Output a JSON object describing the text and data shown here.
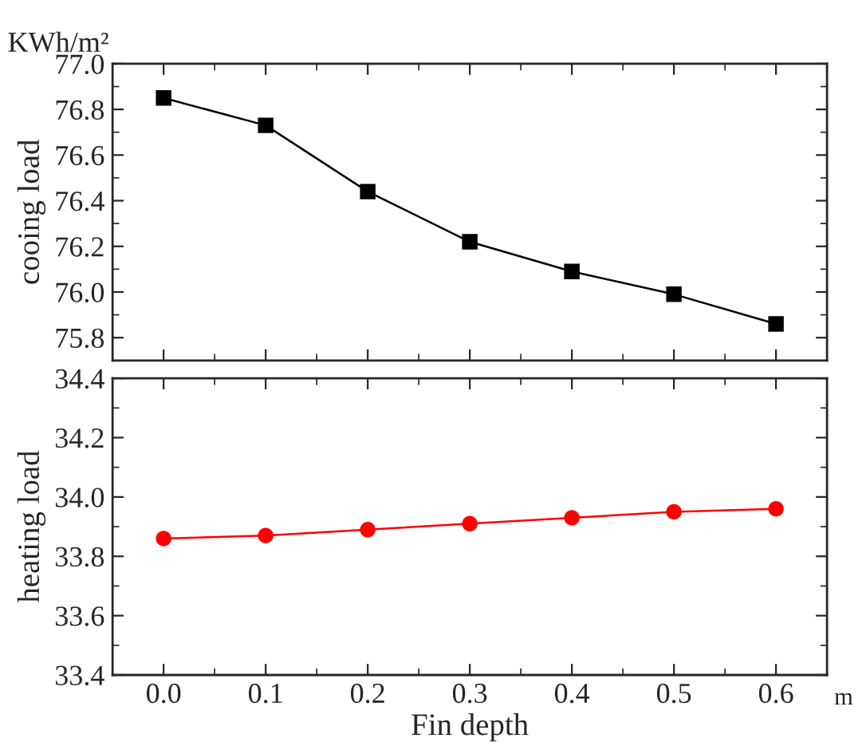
{
  "chart_data": [
    {
      "type": "line",
      "ylabel": "cooing load",
      "annotations": [
        "KWh/m²"
      ],
      "x": [
        0.0,
        0.1,
        0.2,
        0.3,
        0.4,
        0.5,
        0.6
      ],
      "series": [
        {
          "color": "#000000",
          "values": [
            76.85,
            76.73,
            76.44,
            76.22,
            76.09,
            75.99,
            75.86
          ],
          "marker": "square"
        }
      ],
      "xlim": [
        -0.05,
        0.65
      ],
      "xticks": [
        0.0,
        0.1,
        0.2,
        0.3,
        0.4,
        0.5,
        0.6
      ],
      "ylim": [
        75.7,
        77.0
      ],
      "yticks": [
        75.8,
        {
          "value": 76.0,
          "label": "76.0"
        },
        76.2,
        76.4,
        76.6,
        76.8,
        {
          "value": 77.0,
          "label": "77.0"
        }
      ],
      "tick_labels": "y",
      "grid": false,
      "legend": false
    },
    {
      "type": "line",
      "xlabel": "Fin depth",
      "ylabel": "heating load",
      "annotations": [
        "m"
      ],
      "x": [
        0.0,
        0.1,
        0.2,
        0.3,
        0.4,
        0.5,
        0.6
      ],
      "series": [
        {
          "color": "#ff0000",
          "values": [
            33.86,
            33.87,
            33.89,
            33.91,
            33.93,
            33.95,
            33.96
          ],
          "marker": "circle"
        }
      ],
      "xlim": [
        -0.05,
        0.65
      ],
      "xticks": [
        {
          "value": 0.0,
          "label": "0.0"
        },
        0.1,
        0.2,
        0.3,
        0.4,
        0.5,
        0.6
      ],
      "ylim": [
        33.4,
        34.4
      ],
      "yticks": [
        {
          "value": 33.4,
          "label": "33.4"
        },
        {
          "value": 33.6,
          "label": "33.6"
        },
        {
          "value": 33.8,
          "label": "33.8"
        },
        {
          "value": 34.0,
          "label": "34.0"
        },
        {
          "value": 34.2,
          "label": "34.2"
        },
        {
          "value": 34.4,
          "label": "34.4"
        }
      ],
      "grid": false,
      "legend": false
    }
  ]
}
